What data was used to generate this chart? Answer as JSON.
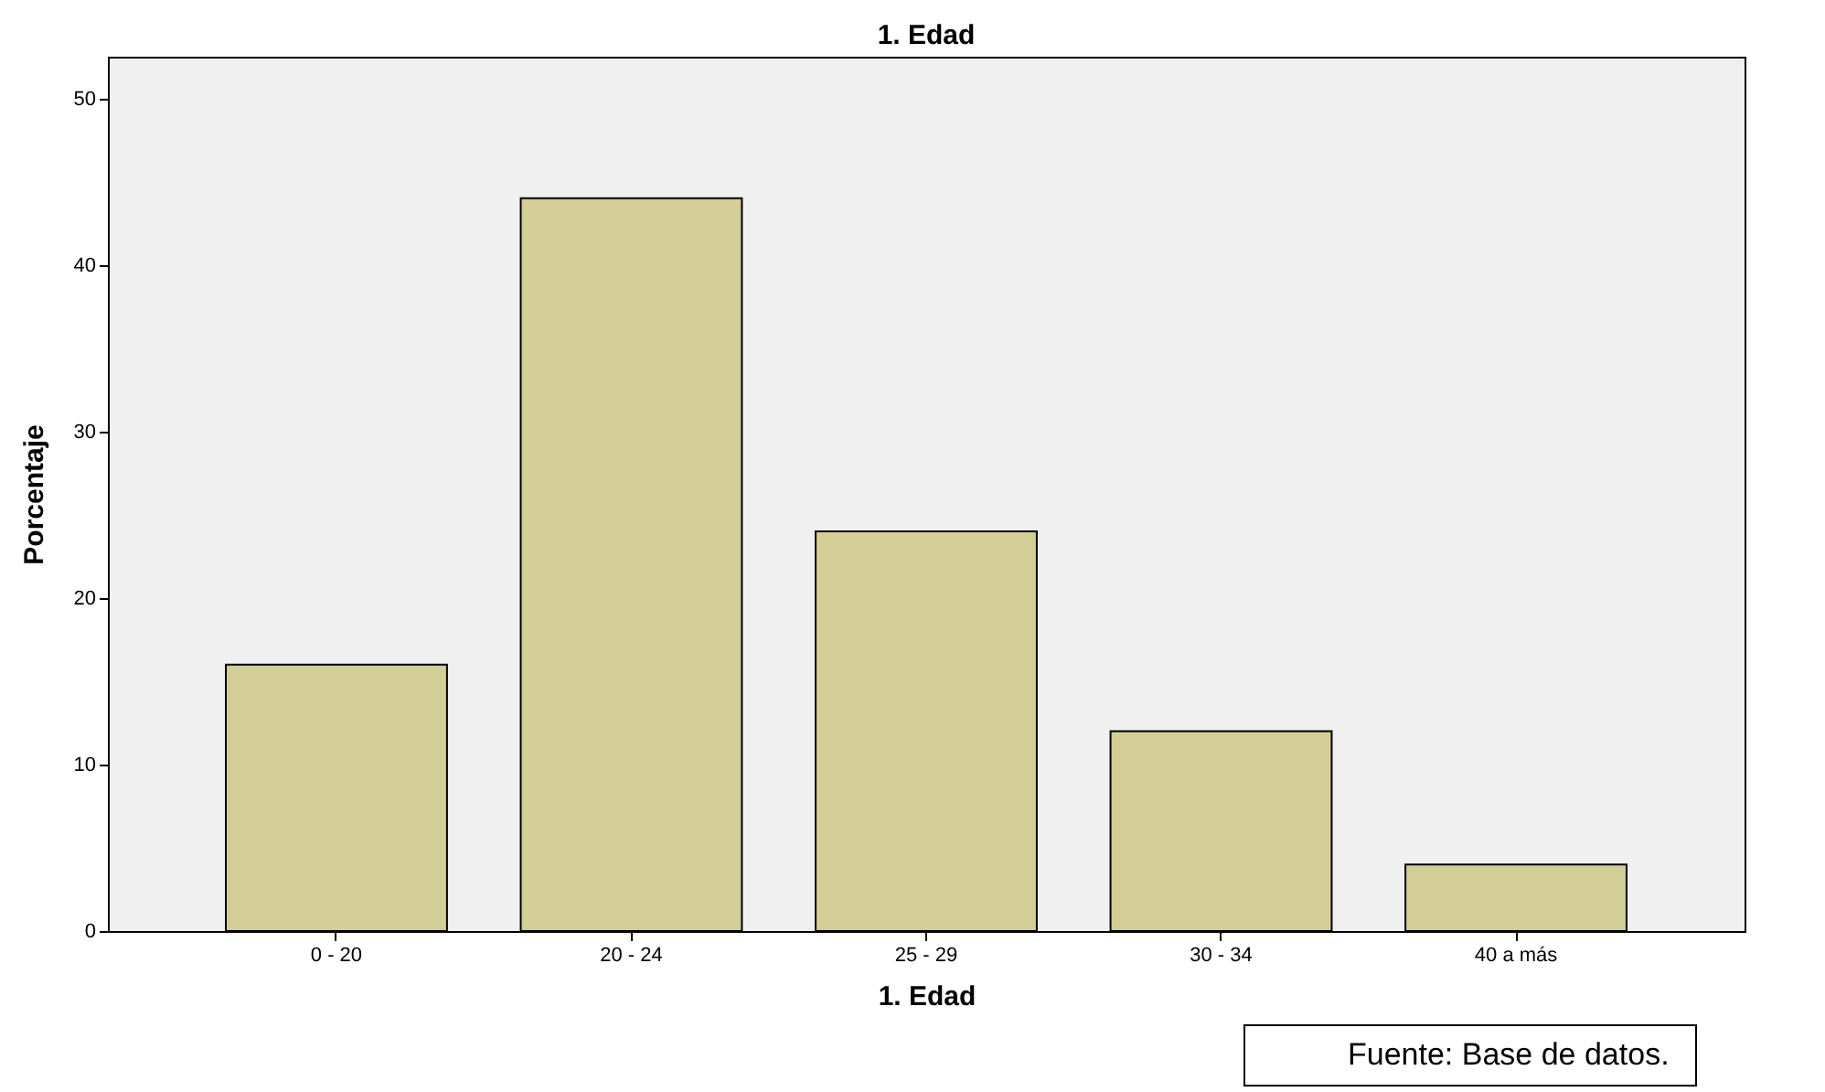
{
  "chart_data": {
    "type": "bar",
    "title": "1. Edad",
    "xlabel": "1. Edad",
    "ylabel": "Porcentaje",
    "categories": [
      "0 - 20",
      "20 - 24",
      "25 - 29",
      "30 - 34",
      "40 a más"
    ],
    "values": [
      16,
      44,
      24,
      12,
      4
    ],
    "color": "#d3cd96",
    "ylim": [
      0,
      52.5
    ],
    "yticks": [
      0,
      10,
      20,
      30,
      40,
      50
    ],
    "grid": false,
    "annotations": [
      "Fuente: Base de datos."
    ]
  }
}
